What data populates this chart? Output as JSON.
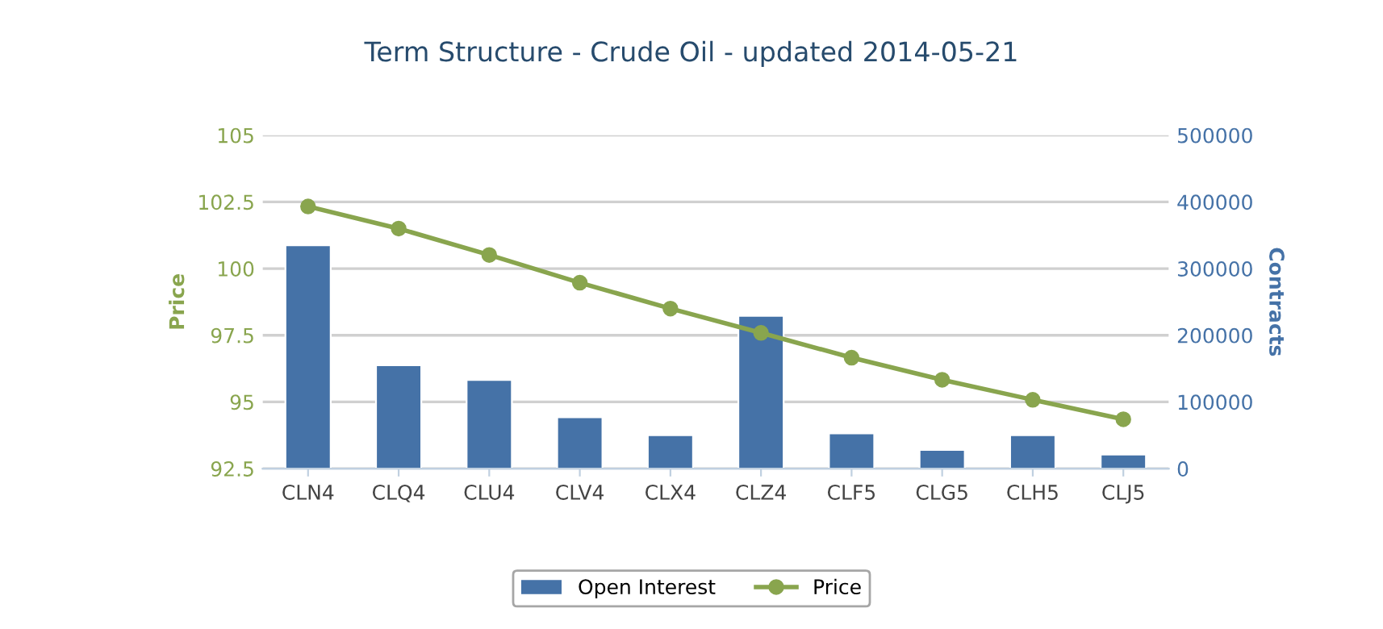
{
  "chart_data": {
    "type": "bar",
    "title": "Term Structure - Crude Oil - updated 2014-05-21",
    "ylabel": "Price",
    "y2label": "Contracts",
    "categories": [
      "CLN4",
      "CLQ4",
      "CLU4",
      "CLV4",
      "CLX4",
      "CLZ4",
      "CLF5",
      "CLG5",
      "CLH5",
      "CLJ5"
    ],
    "series": [
      {
        "name": "Open Interest",
        "axis": "y2",
        "color": "#4572a7",
        "values": [
          335000,
          155000,
          133000,
          77000,
          50000,
          229000,
          53000,
          28000,
          50000,
          21000
        ]
      },
      {
        "name": "Price",
        "type": "line",
        "axis": "y",
        "color": "#89a54e",
        "marker": "circle",
        "values": [
          102.33,
          101.5,
          100.51,
          99.47,
          98.5,
          97.59,
          96.66,
          95.83,
          95.08,
          94.35
        ]
      }
    ],
    "ylim": [
      92.5,
      105
    ],
    "yticks": [
      92.5,
      95,
      97.5,
      100,
      102.5,
      105
    ],
    "y2lim": [
      0,
      500000
    ],
    "y2ticks": [
      0,
      100000,
      200000,
      300000,
      400000,
      500000
    ],
    "grid": "y",
    "legend": "bottom"
  }
}
